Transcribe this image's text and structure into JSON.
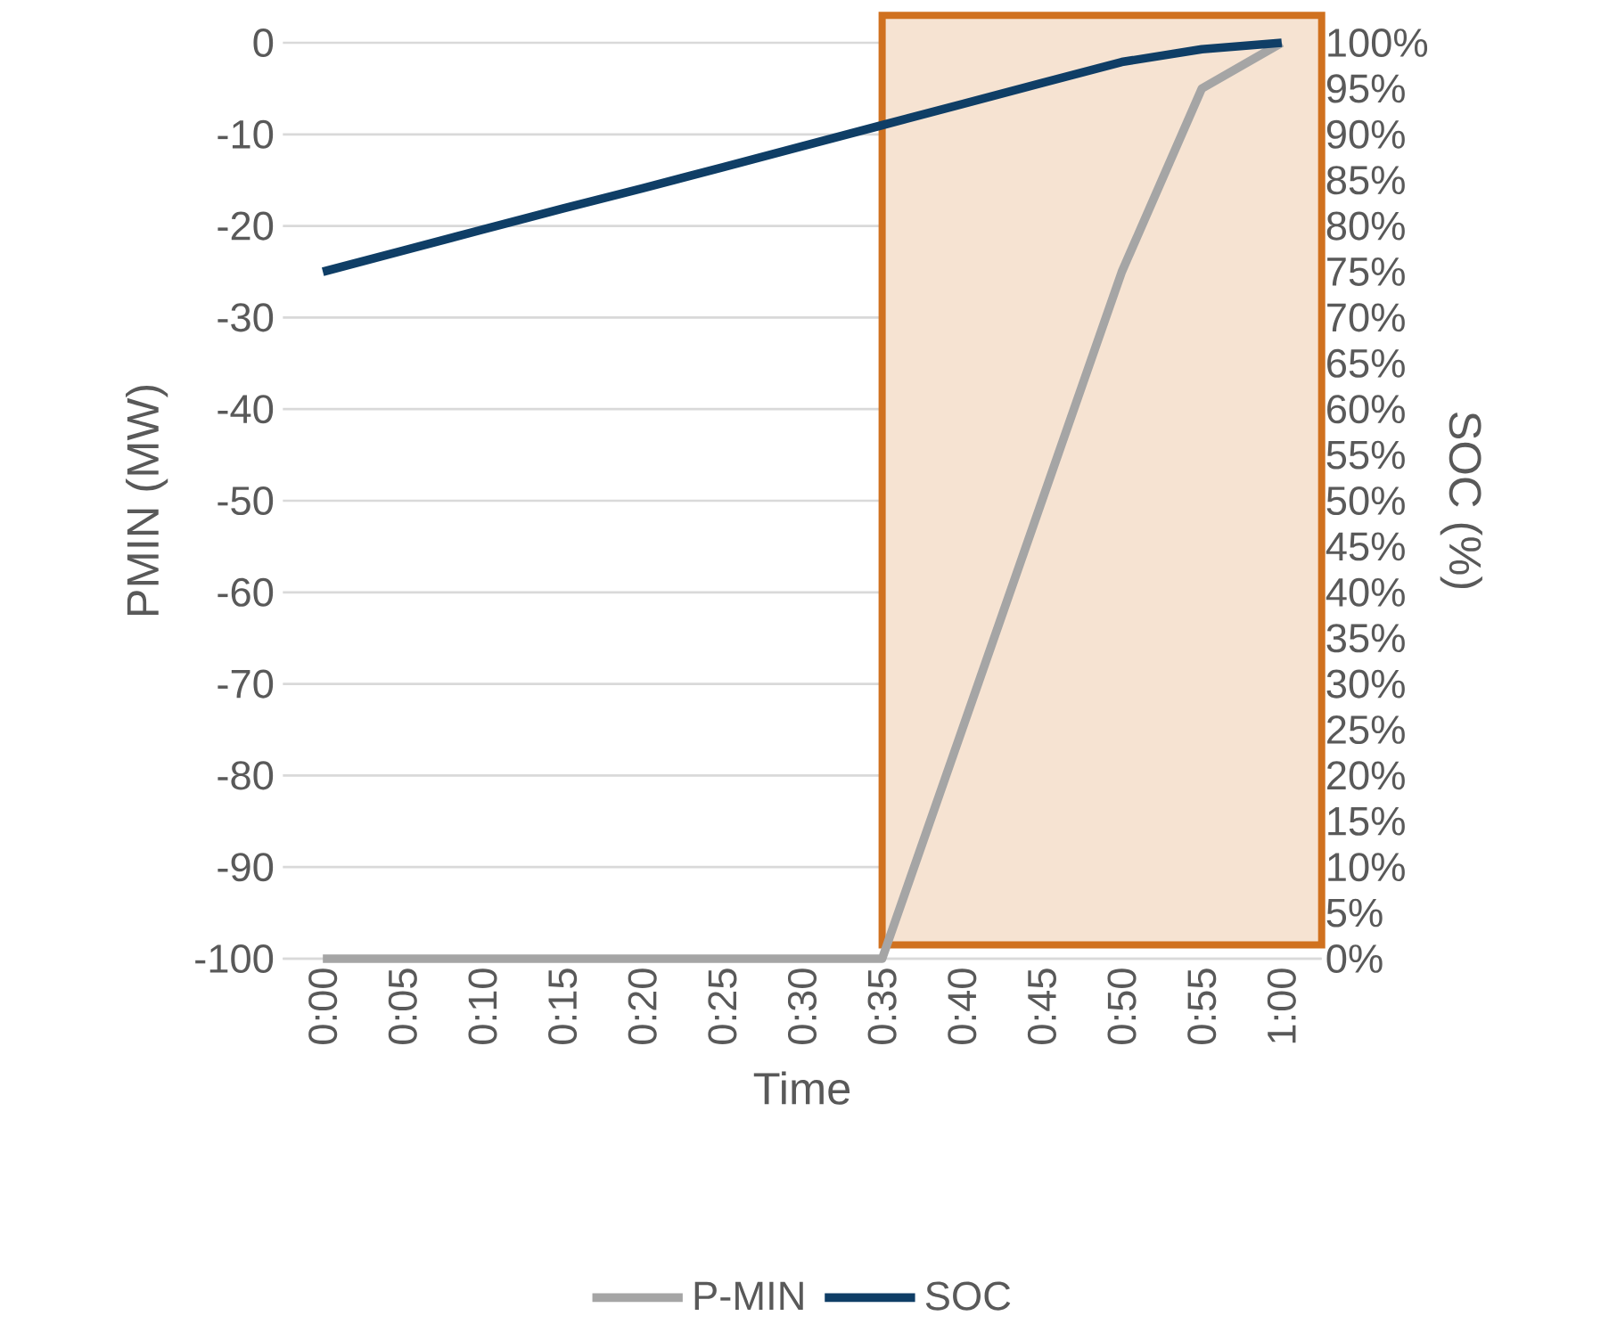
{
  "chart_data": {
    "type": "line",
    "xlabel": "Time",
    "ylabel": "PMIN (MW)",
    "y2label": "SOC (%)",
    "x": [
      0,
      0.0833,
      0.1667,
      0.25,
      0.3333,
      0.4167,
      0.5,
      0.5833,
      0.6667,
      0.75,
      0.8333,
      0.9167,
      1
    ],
    "xlim": [
      -0.0417,
      1.0417
    ],
    "xticks": [
      {
        "value": 0,
        "label": "0:00"
      },
      {
        "value": 0.0833,
        "label": "0:05"
      },
      {
        "value": 0.1667,
        "label": "0:10"
      },
      {
        "value": 0.25,
        "label": "0:15"
      },
      {
        "value": 0.3333,
        "label": "0:20"
      },
      {
        "value": 0.4167,
        "label": "0:25"
      },
      {
        "value": 0.5,
        "label": "0:30"
      },
      {
        "value": 0.5833,
        "label": "0:35"
      },
      {
        "value": 0.6667,
        "label": "0:40"
      },
      {
        "value": 0.75,
        "label": "0:45"
      },
      {
        "value": 0.8333,
        "label": "0:50"
      },
      {
        "value": 0.9167,
        "label": "0:55"
      },
      {
        "value": 1,
        "label": "1:00"
      }
    ],
    "ylim": [
      -100,
      0
    ],
    "yticks": [
      -100,
      -90,
      -80,
      -70,
      -60,
      -50,
      -40,
      -30,
      -20,
      -10,
      0
    ],
    "y2lim": [
      0,
      100
    ],
    "y2ticks": [
      {
        "value": 0,
        "label": "0%"
      },
      {
        "value": 5,
        "label": "5%"
      },
      {
        "value": 10,
        "label": "10%"
      },
      {
        "value": 15,
        "label": "15%"
      },
      {
        "value": 20,
        "label": "20%"
      },
      {
        "value": 25,
        "label": "25%"
      },
      {
        "value": 30,
        "label": "30%"
      },
      {
        "value": 35,
        "label": "35%"
      },
      {
        "value": 40,
        "label": "40%"
      },
      {
        "value": 45,
        "label": "45%"
      },
      {
        "value": 50,
        "label": "50%"
      },
      {
        "value": 55,
        "label": "55%"
      },
      {
        "value": 60,
        "label": "60%"
      },
      {
        "value": 65,
        "label": "65%"
      },
      {
        "value": 70,
        "label": "70%"
      },
      {
        "value": 75,
        "label": "75%"
      },
      {
        "value": 80,
        "label": "80%"
      },
      {
        "value": 85,
        "label": "85%"
      },
      {
        "value": 90,
        "label": "90%"
      },
      {
        "value": 95,
        "label": "95%"
      },
      {
        "value": 100,
        "label": "100%"
      }
    ],
    "series": [
      {
        "name": "P-MIN",
        "color": "#a5a5a5",
        "values": [
          -100,
          -100,
          -100,
          -100,
          -100,
          -100,
          -100,
          -100,
          -75,
          -50,
          -25,
          -5,
          0
        ]
      },
      {
        "name": "SOC",
        "color": "#0f3e66",
        "axis": "y2",
        "values": [
          75,
          77.3,
          79.6,
          81.9,
          84.1,
          86.4,
          88.7,
          91,
          93.3,
          95.6,
          97.9,
          99.3,
          100
        ]
      }
    ],
    "bands": [
      {
        "axis": "x",
        "from": 0.5833,
        "to": 1.0417,
        "color": "#d0711f"
      }
    ],
    "grid": "y",
    "legend": "bottom",
    "marker": "none",
    "line_style": "solid"
  }
}
